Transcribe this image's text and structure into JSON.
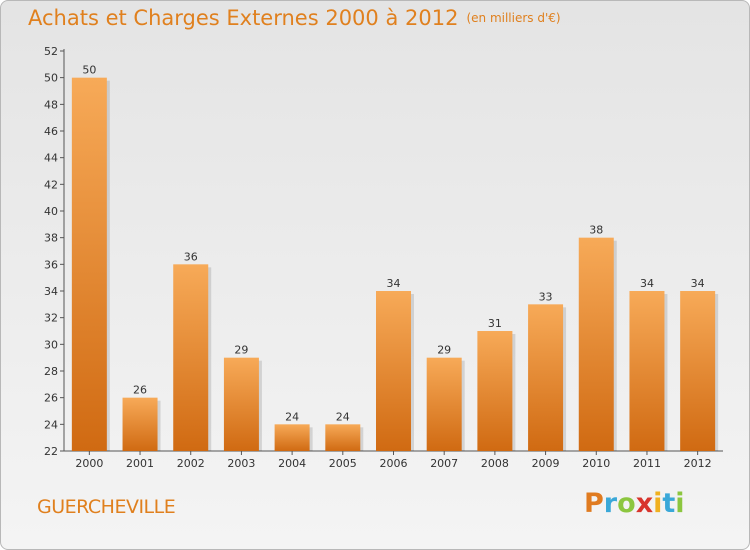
{
  "header": {
    "title": "Achats et Charges Externes 2000 à 2012",
    "subtitle": "(en milliers d'€)"
  },
  "footer": {
    "place": "GUERCHEVILLE",
    "logo_letters": [
      "P",
      "r",
      "o",
      "x",
      "i",
      "t",
      "i"
    ],
    "logo_colors": [
      "#e07b20",
      "#3aa8d8",
      "#8cc63f",
      "#d8342c",
      "#f0b020",
      "#3aa8d8",
      "#8cc63f"
    ]
  },
  "colors": {
    "bar_light": "#f7aa58",
    "bar_dark": "#d06a12",
    "title": "#e0801e"
  },
  "chart_data": {
    "type": "bar",
    "categories": [
      "2000",
      "2001",
      "2002",
      "2003",
      "2004",
      "2005",
      "2006",
      "2007",
      "2008",
      "2009",
      "2010",
      "2011",
      "2012"
    ],
    "values": [
      50,
      26,
      36,
      29,
      24,
      24,
      34,
      29,
      31,
      33,
      38,
      34,
      34
    ],
    "ylim": [
      22,
      52
    ],
    "yticks": [
      22,
      24,
      26,
      28,
      30,
      32,
      34,
      36,
      38,
      40,
      42,
      44,
      46,
      48,
      50,
      52
    ],
    "grid": false,
    "data_labels": true
  }
}
